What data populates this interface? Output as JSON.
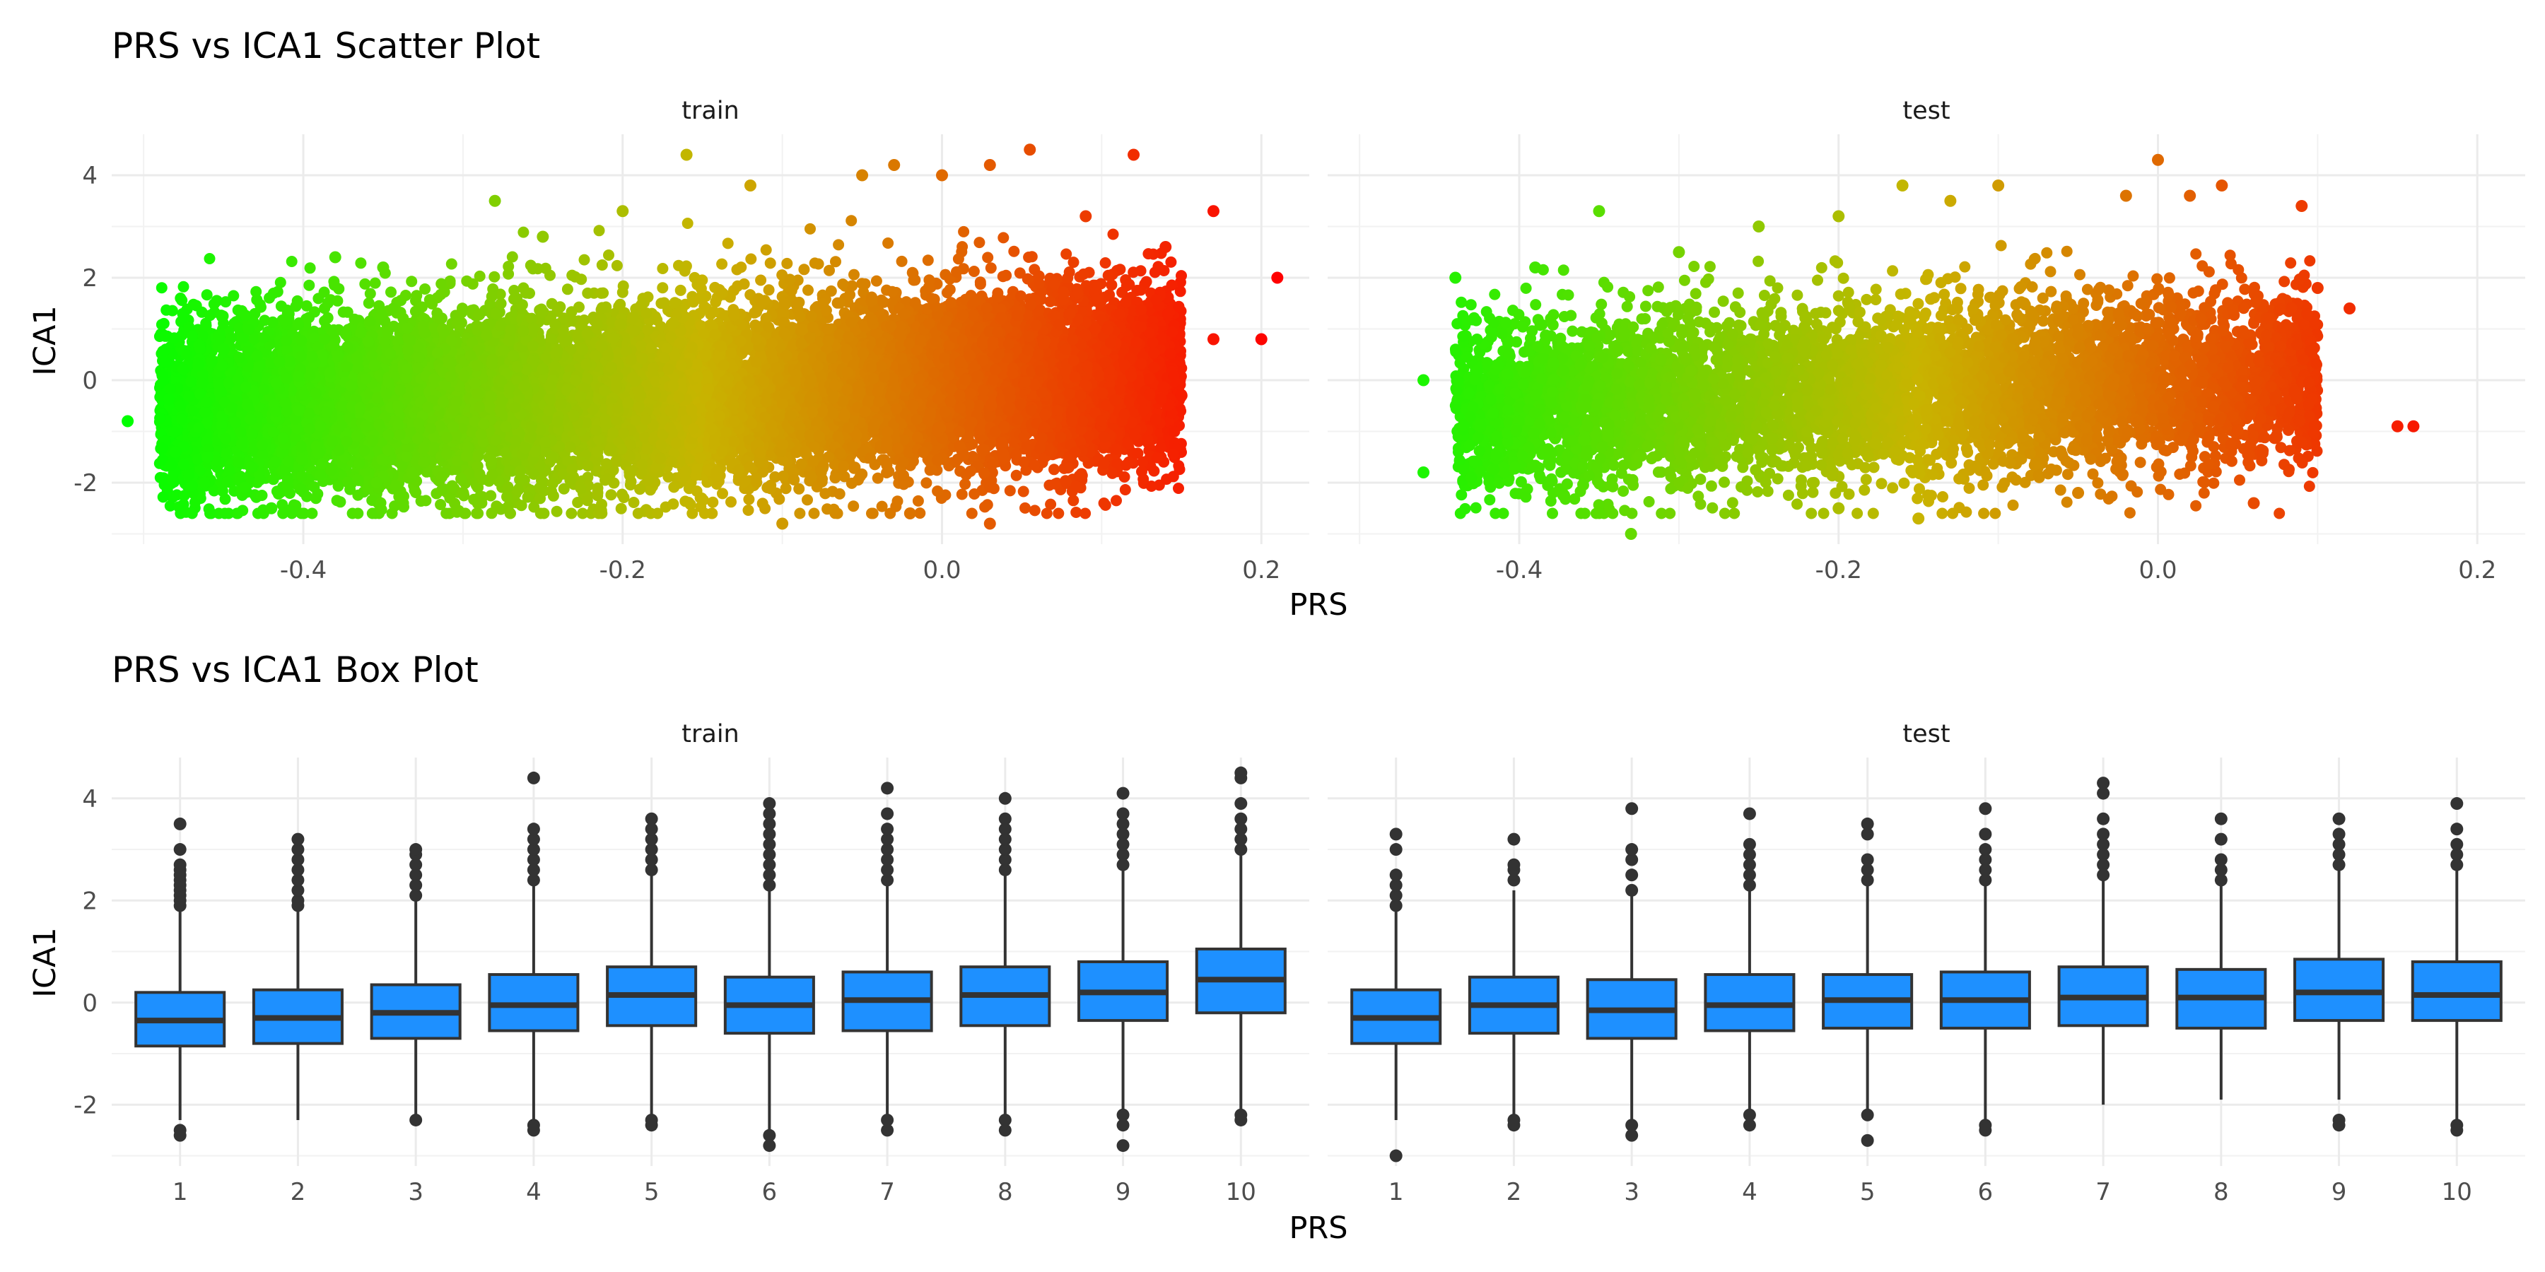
{
  "chart_data": [
    {
      "type": "scatter",
      "title": "PRS vs ICA1 Scatter Plot",
      "xlabel": "PRS",
      "ylabel": "ICA1",
      "facets": [
        "train",
        "test"
      ],
      "xlim": [
        -0.52,
        0.23
      ],
      "ylim": [
        -3.2,
        4.8
      ],
      "x_ticks": [
        -0.4,
        -0.2,
        0.0,
        0.2
      ],
      "x_tick_labels": [
        "-0.4",
        "-0.2",
        "0.0",
        "0.2"
      ],
      "y_ticks": [
        -2,
        0,
        2,
        4
      ],
      "y_tick_labels": [
        "-2",
        "0",
        "2",
        "4"
      ],
      "grid": true,
      "color_scale": {
        "low": "#00ff00",
        "mid": "#c8b400",
        "high": "#ff0000",
        "mapped_to": "PRS"
      },
      "legend": "none",
      "series": [
        {
          "facet": "train",
          "x_range": [
            -0.51,
            0.21
          ],
          "points": [
            [
              -0.51,
              -0.8
            ],
            [
              -0.48,
              -1.4
            ],
            [
              -0.46,
              -1.5
            ],
            [
              -0.45,
              0.6
            ],
            [
              -0.42,
              -2.5
            ],
            [
              -0.38,
              2.4
            ],
            [
              -0.35,
              2.2
            ],
            [
              -0.3,
              -2.2
            ],
            [
              -0.28,
              3.5
            ],
            [
              -0.25,
              2.8
            ],
            [
              -0.2,
              3.3
            ],
            [
              -0.16,
              4.4
            ],
            [
              -0.12,
              3.8
            ],
            [
              -0.1,
              -2.8
            ],
            [
              -0.05,
              4.0
            ],
            [
              -0.03,
              4.2
            ],
            [
              -0.02,
              -2.6
            ],
            [
              0.0,
              4.0
            ],
            [
              0.03,
              4.2
            ],
            [
              0.03,
              -2.8
            ],
            [
              0.055,
              4.5
            ],
            [
              0.09,
              3.2
            ],
            [
              0.12,
              4.4
            ],
            [
              0.14,
              2.6
            ],
            [
              0.15,
              -0.3
            ],
            [
              0.17,
              3.3
            ],
            [
              0.17,
              0.8
            ],
            [
              0.2,
              0.8
            ],
            [
              0.21,
              2.0
            ]
          ]
        },
        {
          "facet": "test",
          "x_range": [
            -0.46,
            0.16
          ],
          "points": [
            [
              -0.46,
              -1.8
            ],
            [
              -0.46,
              0.0
            ],
            [
              -0.44,
              2.0
            ],
            [
              -0.43,
              -1.9
            ],
            [
              -0.39,
              2.2
            ],
            [
              -0.35,
              3.3
            ],
            [
              -0.33,
              -3.0
            ],
            [
              -0.3,
              2.5
            ],
            [
              -0.25,
              3.0
            ],
            [
              -0.2,
              3.2
            ],
            [
              -0.2,
              -2.5
            ],
            [
              -0.16,
              3.8
            ],
            [
              -0.15,
              -2.7
            ],
            [
              -0.13,
              3.5
            ],
            [
              -0.1,
              3.8
            ],
            [
              -0.05,
              -2.2
            ],
            [
              -0.02,
              3.6
            ],
            [
              0.0,
              4.3
            ],
            [
              0.02,
              3.6
            ],
            [
              0.04,
              3.8
            ],
            [
              0.06,
              -2.4
            ],
            [
              0.09,
              3.4
            ],
            [
              0.1,
              1.8
            ],
            [
              0.12,
              1.4
            ],
            [
              0.15,
              -0.9
            ],
            [
              0.16,
              -0.9
            ]
          ]
        }
      ]
    },
    {
      "type": "box",
      "title": "PRS vs ICA1 Box Plot",
      "xlabel": "PRS",
      "ylabel": "ICA1",
      "facets": [
        "train",
        "test"
      ],
      "categories": [
        "1",
        "2",
        "3",
        "4",
        "5",
        "6",
        "7",
        "8",
        "9",
        "10"
      ],
      "ylim": [
        -3.2,
        4.8
      ],
      "y_ticks": [
        -2,
        0,
        2,
        4
      ],
      "y_tick_labels": [
        "-2",
        "0",
        "2",
        "4"
      ],
      "grid": true,
      "box_color": "#1e90ff",
      "line_color": "#333333",
      "series": [
        {
          "facet": "train",
          "boxes": [
            {
              "category": "1",
              "whisker_low": -2.3,
              "q1": -0.85,
              "median": -0.35,
              "q3": 0.2,
              "whisker_high": 1.8,
              "outliers": [
                -2.5,
                -2.6,
                1.9,
                2.0,
                2.1,
                2.2,
                2.3,
                2.4,
                2.5,
                2.6,
                2.7,
                3.0,
                3.5
              ]
            },
            {
              "category": "2",
              "whisker_low": -2.3,
              "q1": -0.8,
              "median": -0.3,
              "q3": 0.25,
              "whisker_high": 1.8,
              "outliers": [
                1.9,
                2.0,
                2.2,
                2.4,
                2.6,
                2.8,
                3.0,
                3.2
              ]
            },
            {
              "category": "3",
              "whisker_low": -2.2,
              "q1": -0.7,
              "median": -0.2,
              "q3": 0.35,
              "whisker_high": 2.0,
              "outliers": [
                -2.3,
                2.1,
                2.3,
                2.5,
                2.7,
                2.9,
                3.0
              ]
            },
            {
              "category": "4",
              "whisker_low": -2.3,
              "q1": -0.55,
              "median": -0.05,
              "q3": 0.55,
              "whisker_high": 2.3,
              "outliers": [
                -2.4,
                -2.5,
                2.4,
                2.6,
                2.8,
                3.0,
                3.2,
                3.4,
                4.4
              ]
            },
            {
              "category": "5",
              "whisker_low": -2.2,
              "q1": -0.45,
              "median": 0.15,
              "q3": 0.7,
              "whisker_high": 2.5,
              "outliers": [
                -2.3,
                -2.4,
                2.6,
                2.8,
                3.0,
                3.2,
                3.4,
                3.6
              ]
            },
            {
              "category": "6",
              "whisker_low": -2.5,
              "q1": -0.6,
              "median": -0.05,
              "q3": 0.5,
              "whisker_high": 2.2,
              "outliers": [
                -2.6,
                -2.8,
                2.3,
                2.5,
                2.7,
                2.9,
                3.1,
                3.3,
                3.5,
                3.7,
                3.9
              ]
            },
            {
              "category": "7",
              "whisker_low": -2.2,
              "q1": -0.55,
              "median": 0.05,
              "q3": 0.6,
              "whisker_high": 2.3,
              "outliers": [
                -2.3,
                -2.5,
                2.4,
                2.6,
                2.8,
                3.0,
                3.2,
                3.4,
                3.7,
                4.2
              ]
            },
            {
              "category": "8",
              "whisker_low": -2.2,
              "q1": -0.45,
              "median": 0.15,
              "q3": 0.7,
              "whisker_high": 2.5,
              "outliers": [
                -2.3,
                -2.5,
                2.6,
                2.8,
                3.0,
                3.2,
                3.4,
                3.6,
                4.0
              ]
            },
            {
              "category": "9",
              "whisker_low": -2.1,
              "q1": -0.35,
              "median": 0.2,
              "q3": 0.8,
              "whisker_high": 2.6,
              "outliers": [
                -2.2,
                -2.4,
                -2.8,
                2.7,
                2.9,
                3.1,
                3.3,
                3.5,
                3.7,
                4.1
              ]
            },
            {
              "category": "10",
              "whisker_low": -2.1,
              "q1": -0.2,
              "median": 0.45,
              "q3": 1.05,
              "whisker_high": 2.9,
              "outliers": [
                -2.2,
                -2.3,
                3.0,
                3.2,
                3.4,
                3.6,
                3.9,
                4.4,
                4.5
              ]
            }
          ]
        },
        {
          "facet": "test",
          "boxes": [
            {
              "category": "1",
              "whisker_low": -2.3,
              "q1": -0.8,
              "median": -0.3,
              "q3": 0.25,
              "whisker_high": 1.8,
              "outliers": [
                -3.0,
                1.9,
                2.1,
                2.3,
                2.5,
                3.0,
                3.3
              ]
            },
            {
              "category": "2",
              "whisker_low": -2.2,
              "q1": -0.6,
              "median": -0.05,
              "q3": 0.5,
              "whisker_high": 2.2,
              "outliers": [
                -2.3,
                -2.4,
                2.4,
                2.6,
                2.7,
                3.2
              ]
            },
            {
              "category": "3",
              "whisker_low": -2.3,
              "q1": -0.7,
              "median": -0.15,
              "q3": 0.45,
              "whisker_high": 2.1,
              "outliers": [
                -2.4,
                -2.6,
                2.2,
                2.5,
                2.8,
                3.0,
                3.8
              ]
            },
            {
              "category": "4",
              "whisker_low": -2.1,
              "q1": -0.55,
              "median": -0.05,
              "q3": 0.55,
              "whisker_high": 2.2,
              "outliers": [
                -2.2,
                -2.4,
                2.3,
                2.5,
                2.7,
                2.9,
                3.1,
                3.7
              ]
            },
            {
              "category": "5",
              "whisker_low": -2.1,
              "q1": -0.5,
              "median": 0.05,
              "q3": 0.55,
              "whisker_high": 2.3,
              "outliers": [
                -2.2,
                -2.7,
                2.4,
                2.6,
                2.8,
                3.3,
                3.5
              ]
            },
            {
              "category": "6",
              "whisker_low": -2.3,
              "q1": -0.5,
              "median": 0.05,
              "q3": 0.6,
              "whisker_high": 2.3,
              "outliers": [
                -2.4,
                -2.5,
                2.4,
                2.6,
                2.8,
                3.0,
                3.3,
                3.8
              ]
            },
            {
              "category": "7",
              "whisker_low": -2.0,
              "q1": -0.45,
              "median": 0.1,
              "q3": 0.7,
              "whisker_high": 2.4,
              "outliers": [
                2.5,
                2.7,
                2.9,
                3.1,
                3.3,
                3.6,
                4.1,
                4.3
              ]
            },
            {
              "category": "8",
              "whisker_low": -1.9,
              "q1": -0.5,
              "median": 0.1,
              "q3": 0.65,
              "whisker_high": 2.3,
              "outliers": [
                2.4,
                2.6,
                2.8,
                3.2,
                3.6
              ]
            },
            {
              "category": "9",
              "whisker_low": -1.9,
              "q1": -0.35,
              "median": 0.2,
              "q3": 0.85,
              "whisker_high": 2.6,
              "outliers": [
                -2.3,
                -2.4,
                2.7,
                2.9,
                3.1,
                3.3,
                3.6
              ]
            },
            {
              "category": "10",
              "whisker_low": -2.3,
              "q1": -0.35,
              "median": 0.15,
              "q3": 0.8,
              "whisker_high": 2.6,
              "outliers": [
                -2.4,
                -2.5,
                2.7,
                2.9,
                3.1,
                3.4,
                3.9
              ]
            }
          ]
        }
      ]
    }
  ]
}
